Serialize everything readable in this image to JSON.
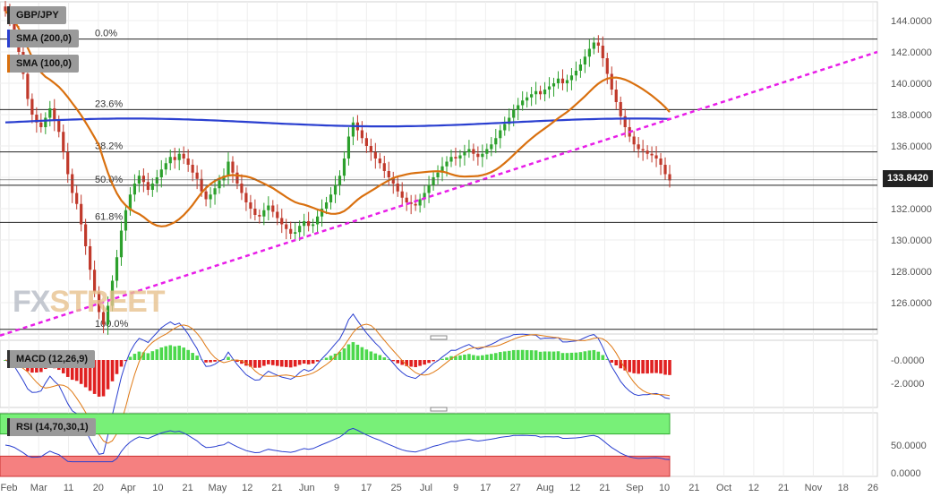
{
  "chart_data": {
    "type": "candlestick",
    "symbol": "GBP/JPY",
    "last_price": "133.8420",
    "watermark": "FXSTREET",
    "y_axis": {
      "ylim": [
        124.0,
        145.2
      ],
      "ticks": [
        "144.0000",
        "142.0000",
        "140.0000",
        "138.0000",
        "136.0000",
        "134.0000",
        "132.0000",
        "130.0000",
        "128.0000",
        "126.0000"
      ]
    },
    "x_axis": {
      "ticks": [
        "Feb",
        "Mar",
        "11",
        "20",
        "Apr",
        "10",
        "21",
        "May",
        "12",
        "21",
        "Jun",
        "9",
        "17",
        "25",
        "Jul",
        "9",
        "17",
        "27",
        "Aug",
        "12",
        "21",
        "Sep",
        "10",
        "21",
        "Oct",
        "12",
        "21",
        "Nov",
        "18",
        "26"
      ]
    },
    "fibonacci": [
      {
        "label": "0.0%",
        "value": 142.82
      },
      {
        "label": "23.6%",
        "value": 138.32
      },
      {
        "label": "38.2%",
        "value": 135.62
      },
      {
        "label": "50.0%",
        "value": 133.49
      },
      {
        "label": "61.8%",
        "value": 131.12
      },
      {
        "label": "100.0%",
        "value": 124.3
      }
    ],
    "indicators": {
      "sma200": {
        "label": "SMA (200,0)",
        "color": "#2a3fd0"
      },
      "sma100": {
        "label": "SMA (100,0)",
        "color": "#d9700f"
      },
      "trendline": {
        "color": "#e81ee8"
      }
    },
    "macd": {
      "label": "MACD (12,26,9)",
      "ticks": [
        "-0.0000",
        "-2.0000"
      ]
    },
    "rsi": {
      "label": "RSI (14,70,30,1)",
      "ticks": [
        "50.0000",
        "0.0000"
      ]
    },
    "colors": {
      "up": "#2ca02c",
      "down": "#c0392b"
    },
    "candles_close": [
      144.6,
      144.1,
      143.3,
      142.0,
      140.6,
      139.0,
      138.0,
      137.5,
      137.2,
      137.8,
      138.4,
      137.6,
      136.9,
      135.6,
      134.2,
      133.0,
      132.3,
      131.0,
      129.6,
      128.1,
      126.7,
      125.4,
      124.6,
      125.8,
      127.4,
      128.9,
      130.6,
      131.9,
      132.9,
      133.6,
      134.1,
      133.7,
      133.2,
      133.6,
      134.0,
      134.5,
      134.9,
      135.3,
      135.1,
      135.5,
      135.2,
      134.8,
      134.3,
      133.9,
      133.1,
      132.6,
      132.9,
      133.3,
      133.8,
      134.1,
      135.0,
      134.3,
      133.6,
      133.0,
      132.4,
      132.0,
      131.6,
      131.5,
      131.9,
      132.2,
      131.8,
      131.4,
      131.0,
      130.7,
      130.4,
      130.5,
      130.9,
      131.2,
      130.9,
      131.0,
      131.5,
      132.0,
      132.4,
      132.9,
      133.5,
      134.1,
      135.2,
      136.6,
      137.5,
      137.0,
      136.5,
      136.0,
      135.6,
      135.2,
      134.9,
      134.4,
      134.0,
      133.6,
      133.1,
      132.7,
      132.4,
      132.3,
      132.2,
      132.6,
      133.0,
      133.5,
      134.0,
      134.3,
      134.7,
      135.0,
      135.3,
      135.2,
      135.4,
      135.6,
      135.8,
      135.5,
      135.3,
      135.5,
      135.8,
      136.1,
      136.5,
      137.0,
      137.4,
      137.8,
      138.3,
      138.6,
      138.9,
      139.1,
      139.3,
      139.5,
      139.3,
      139.6,
      139.8,
      140.0,
      140.3,
      140.0,
      140.2,
      140.5,
      140.8,
      141.2,
      141.7,
      142.2,
      142.6,
      142.4,
      141.6,
      140.6,
      139.6,
      138.8,
      137.9,
      137.2,
      136.6,
      136.1,
      135.8,
      135.7,
      135.5,
      135.4,
      135.2,
      134.8,
      134.2,
      133.8
    ]
  }
}
